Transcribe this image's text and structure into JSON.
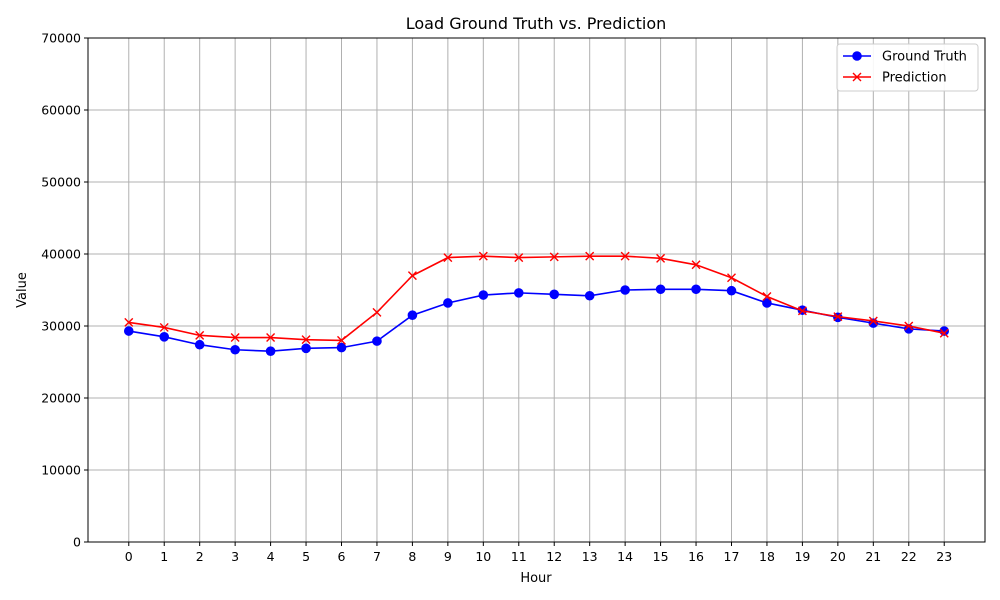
{
  "chart_data": {
    "type": "line",
    "title": "Load Ground Truth vs. Prediction",
    "xlabel": "Hour",
    "ylabel": "Value",
    "x": [
      0,
      1,
      2,
      3,
      4,
      5,
      6,
      7,
      8,
      9,
      10,
      11,
      12,
      13,
      14,
      15,
      16,
      17,
      18,
      19,
      20,
      21,
      22,
      23
    ],
    "xlim": [
      -1.15,
      24.15
    ],
    "ylim": [
      0,
      70000
    ],
    "yticks": [
      0,
      10000,
      20000,
      30000,
      40000,
      50000,
      60000,
      70000
    ],
    "grid": true,
    "legend_position": "top-right",
    "series": [
      {
        "name": "Ground Truth",
        "color": "#0000ff",
        "marker": "circle",
        "values": [
          29300,
          28500,
          27400,
          26700,
          26500,
          26900,
          27000,
          27900,
          31500,
          33200,
          34300,
          34600,
          34400,
          34200,
          35000,
          35100,
          35100,
          34900,
          33200,
          32200,
          31200,
          30400,
          29600,
          29300
        ]
      },
      {
        "name": "Prediction",
        "color": "#ff0000",
        "marker": "x",
        "values": [
          30500,
          29800,
          28700,
          28400,
          28400,
          28100,
          28000,
          31900,
          37000,
          39500,
          39700,
          39500,
          39600,
          39700,
          39700,
          39400,
          38500,
          36700,
          34100,
          32100,
          31300,
          30700,
          30000,
          29000
        ]
      }
    ]
  }
}
